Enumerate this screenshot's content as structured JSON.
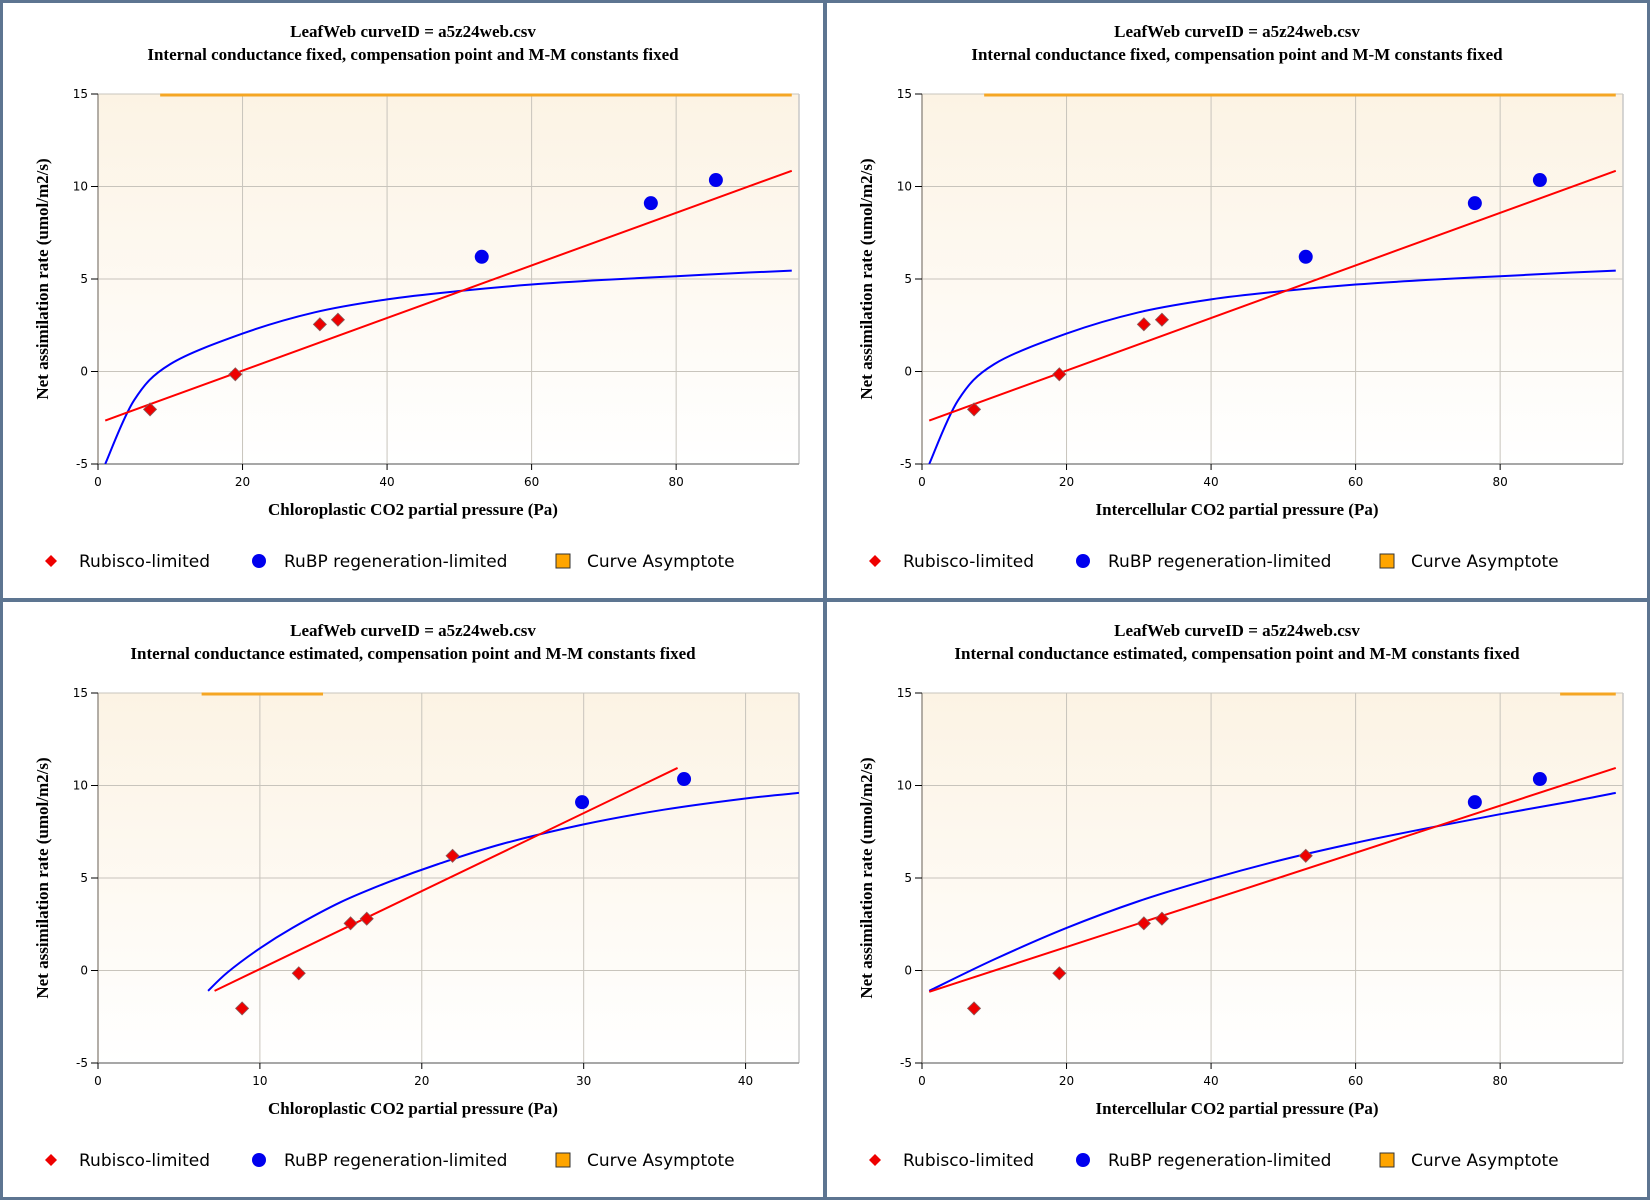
{
  "colors": {
    "rubisco": "#ee0000",
    "rubisco_line": "#ff0000",
    "rubp": "#0000ee",
    "rubp_line": "#0000ff",
    "asymptote": "#f5a623",
    "grid": "#c8c4bc",
    "bg_top": "#fcf3e4",
    "bg_bottom": "#ffffff",
    "frame": "#5d7591"
  },
  "legend": {
    "rubisco": "Rubisco-limited",
    "rubp": "RuBP regeneration-limited",
    "asymptote": "Curve Asymptote"
  },
  "chart_data": [
    {
      "type": "scatter",
      "title": "LeafWeb curveID = a5z24web.csv",
      "subtitle": "Internal conductance fixed, compensation point and M-M constants fixed",
      "xlabel": "Chloroplastic CO2 partial pressure (Pa)",
      "ylabel": "Net assimilation rate (umol/m2/s)",
      "xlim": [
        0,
        97
      ],
      "ylim": [
        -5,
        15
      ],
      "xticks": [
        0,
        20,
        40,
        60,
        80
      ],
      "yticks": [
        -5,
        0,
        5,
        10,
        15
      ],
      "grid": true,
      "legend_position": "bottom",
      "series": [
        {
          "name": "Rubisco-limited",
          "kind": "points",
          "marker": "diamond",
          "x": [
            7.2,
            19.0,
            30.7,
            33.2
          ],
          "y": [
            -2.05,
            -0.15,
            2.55,
            2.8
          ]
        },
        {
          "name": "RuBP regeneration-limited",
          "kind": "points",
          "marker": "circle",
          "x": [
            53.1,
            76.5,
            85.5
          ],
          "y": [
            6.2,
            9.1,
            10.35
          ]
        },
        {
          "name": "Rubisco fit",
          "kind": "line",
          "x": [
            1,
            96
          ],
          "y": [
            -2.65,
            10.85
          ]
        },
        {
          "name": "RuBP fit",
          "kind": "curve",
          "x": [
            1,
            5,
            10,
            20,
            30,
            40,
            50,
            60,
            70,
            80,
            90,
            96
          ],
          "y": [
            -5.0,
            -1.55,
            0.4,
            2.05,
            3.2,
            3.9,
            4.35,
            4.7,
            4.95,
            5.15,
            5.35,
            5.45
          ]
        },
        {
          "name": "Curve Asymptote",
          "kind": "hline",
          "y": 15,
          "x": [
            8.6,
            96
          ]
        }
      ]
    },
    {
      "type": "scatter",
      "title": "LeafWeb curveID = a5z24web.csv",
      "subtitle": "Internal conductance fixed, compensation point and M-M constants fixed",
      "xlabel": "Intercellular CO2 partial pressure (Pa)",
      "ylabel": "Net assimilation rate (umol/m2/s)",
      "xlim": [
        0,
        97
      ],
      "ylim": [
        -5,
        15
      ],
      "xticks": [
        0,
        20,
        40,
        60,
        80
      ],
      "yticks": [
        -5,
        0,
        5,
        10,
        15
      ],
      "grid": true,
      "legend_position": "bottom",
      "series": [
        {
          "name": "Rubisco-limited",
          "kind": "points",
          "marker": "diamond",
          "x": [
            7.2,
            19.0,
            30.7,
            33.2
          ],
          "y": [
            -2.05,
            -0.15,
            2.55,
            2.8
          ]
        },
        {
          "name": "RuBP regeneration-limited",
          "kind": "points",
          "marker": "circle",
          "x": [
            53.1,
            76.5,
            85.5
          ],
          "y": [
            6.2,
            9.1,
            10.35
          ]
        },
        {
          "name": "Rubisco fit",
          "kind": "line",
          "x": [
            1,
            96
          ],
          "y": [
            -2.65,
            10.85
          ]
        },
        {
          "name": "RuBP fit",
          "kind": "curve",
          "x": [
            1,
            5,
            10,
            20,
            30,
            40,
            50,
            60,
            70,
            80,
            90,
            96
          ],
          "y": [
            -5.0,
            -1.55,
            0.4,
            2.05,
            3.2,
            3.9,
            4.35,
            4.7,
            4.95,
            5.15,
            5.35,
            5.45
          ]
        },
        {
          "name": "Curve Asymptote",
          "kind": "hline",
          "y": 15,
          "x": [
            8.6,
            96
          ]
        }
      ]
    },
    {
      "type": "scatter",
      "title": "LeafWeb curveID = a5z24web.csv",
      "subtitle": "Internal conductance estimated, compensation point and M-M constants fixed",
      "xlabel": "Chloroplastic CO2 partial pressure (Pa)",
      "ylabel": "Net assimilation rate (umol/m2/s)",
      "xlim": [
        0,
        43.3
      ],
      "ylim": [
        -5,
        15
      ],
      "xticks": [
        0,
        10,
        20,
        30,
        40
      ],
      "yticks": [
        -5,
        0,
        5,
        10,
        15
      ],
      "grid": true,
      "legend_position": "bottom",
      "series": [
        {
          "name": "Rubisco-limited",
          "kind": "points",
          "marker": "diamond",
          "x": [
            8.9,
            12.4,
            15.6,
            16.6,
            21.9
          ],
          "y": [
            -2.05,
            -0.15,
            2.55,
            2.8,
            6.2
          ]
        },
        {
          "name": "RuBP regeneration-limited",
          "kind": "points",
          "marker": "circle",
          "x": [
            29.9,
            36.2
          ],
          "y": [
            9.1,
            10.35
          ]
        },
        {
          "name": "Rubisco fit",
          "kind": "line",
          "x": [
            7.2,
            35.8
          ],
          "y": [
            -1.1,
            10.95
          ]
        },
        {
          "name": "RuBP fit",
          "kind": "curve",
          "x": [
            6.8,
            8,
            10,
            12,
            15,
            18,
            21,
            25,
            30,
            35,
            40,
            43.3
          ],
          "y": [
            -1.1,
            -0.1,
            1.2,
            2.3,
            3.7,
            4.8,
            5.75,
            6.85,
            7.9,
            8.7,
            9.3,
            9.6
          ]
        },
        {
          "name": "Curve Asymptote",
          "kind": "hline",
          "y": 15,
          "x": [
            6.4,
            13.9
          ]
        }
      ]
    },
    {
      "type": "scatter",
      "title": "LeafWeb curveID = a5z24web.csv",
      "subtitle": "Internal conductance estimated, compensation point and M-M constants fixed",
      "xlabel": "Intercellular CO2 partial pressure (Pa)",
      "ylabel": "Net assimilation rate (umol/m2/s)",
      "xlim": [
        0,
        97
      ],
      "ylim": [
        -5,
        15
      ],
      "xticks": [
        0,
        20,
        40,
        60,
        80
      ],
      "yticks": [
        -5,
        0,
        5,
        10,
        15
      ],
      "grid": true,
      "legend_position": "bottom",
      "series": [
        {
          "name": "Rubisco-limited",
          "kind": "points",
          "marker": "diamond",
          "x": [
            7.2,
            19.0,
            30.7,
            33.2,
            53.1
          ],
          "y": [
            -2.05,
            -0.15,
            2.55,
            2.8,
            6.2
          ]
        },
        {
          "name": "RuBP regeneration-limited",
          "kind": "points",
          "marker": "circle",
          "x": [
            76.5,
            85.5
          ],
          "y": [
            9.1,
            10.35
          ]
        },
        {
          "name": "Rubisco fit",
          "kind": "line",
          "x": [
            1,
            96
          ],
          "y": [
            -1.15,
            10.95
          ]
        },
        {
          "name": "RuBP fit",
          "kind": "curve",
          "x": [
            1,
            10,
            20,
            30,
            40,
            50,
            60,
            70,
            80,
            90,
            96
          ],
          "y": [
            -1.1,
            0.6,
            2.3,
            3.75,
            4.95,
            6.0,
            6.9,
            7.7,
            8.45,
            9.15,
            9.6
          ]
        },
        {
          "name": "Curve Asymptote",
          "kind": "hline",
          "y": 15,
          "x": [
            88.3,
            96
          ]
        }
      ]
    }
  ]
}
